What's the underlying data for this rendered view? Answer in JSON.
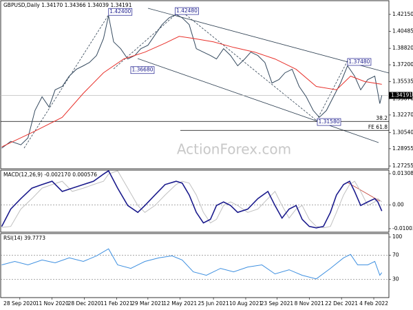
{
  "chart_data": [
    {
      "type": "line",
      "title": "GBPUSD,Daily  1.34170 1.34366 1.34039 1.34191",
      "watermark": "ActionForex.com",
      "xlim": [
        -19,
        366
      ],
      "ylim": [
        1.26985,
        1.43498
      ],
      "yticks": [
        {
          "value": 1.4215,
          "label": "1.42150"
        },
        {
          "value": 1.40485,
          "label": "1.40485"
        },
        {
          "value": 1.3882,
          "label": "1.38820"
        },
        {
          "value": 1.372,
          "label": "1.37200"
        },
        {
          "value": 1.35535,
          "label": "1.35535"
        },
        {
          "value": 1.3387,
          "label": "1.33870"
        },
        {
          "value": 1.3227,
          "label": "1.32270"
        },
        {
          "value": 1.3054,
          "label": "1.30540"
        },
        {
          "value": 1.28955,
          "label": "1.28955"
        },
        {
          "value": 1.27255,
          "label": "1.27255"
        }
      ],
      "series": [
        {
          "color": "#34495e",
          "x": [
            -18,
            -9,
            1,
            8,
            15,
            22,
            29,
            35,
            42,
            49,
            56,
            63,
            69,
            76,
            83,
            88,
            93,
            100,
            107,
            114,
            120,
            127,
            134,
            141,
            148,
            155,
            161,
            168,
            175,
            182,
            189,
            195,
            202,
            209,
            216,
            223,
            229,
            236,
            243,
            250,
            257,
            263,
            270,
            277,
            284,
            291,
            297,
            304,
            311,
            318,
            325,
            332,
            338,
            345,
            352,
            357,
            359
          ],
          "values": [
            1.2901,
            1.2968,
            1.2934,
            1.3002,
            1.3271,
            1.3406,
            1.3305,
            1.3474,
            1.3507,
            1.3609,
            1.3676,
            1.371,
            1.3743,
            1.3811,
            1.3979,
            1.4202,
            1.3945,
            1.3878,
            1.3777,
            1.3811,
            1.3878,
            1.3912,
            1.4013,
            1.4114,
            1.4181,
            1.4215,
            1.4181,
            1.4114,
            1.3878,
            1.3844,
            1.3811,
            1.3777,
            1.3878,
            1.3811,
            1.371,
            1.3777,
            1.3844,
            1.3811,
            1.3743,
            1.3541,
            1.3575,
            1.3642,
            1.3676,
            1.3507,
            1.3406,
            1.3271,
            1.3204,
            1.3271,
            1.3406,
            1.3541,
            1.371,
            1.3609,
            1.3474,
            1.3575,
            1.3609,
            1.3339,
            1.3419
          ]
        },
        {
          "color": "#e8302a",
          "x": [
            -18,
            15,
            42,
            63,
            83,
            103,
            124,
            144,
            158,
            172,
            192,
            212,
            233,
            253,
            274,
            294,
            314,
            328,
            342,
            359
          ],
          "values": [
            1.2914,
            1.3069,
            1.3204,
            1.344,
            1.3642,
            1.3777,
            1.3844,
            1.3932,
            1.3999,
            1.3979,
            1.3945,
            1.3891,
            1.3844,
            1.3777,
            1.3676,
            1.3507,
            1.3474,
            1.3609,
            1.3555,
            1.3528
          ]
        }
      ],
      "annotations": [
        {
          "label": "1.42400",
          "x": 88,
          "y": 1.424
        },
        {
          "label": "1.42480",
          "x": 154,
          "y": 1.4248
        },
        {
          "label": "1.36680",
          "x": 110,
          "y": 1.3668
        },
        {
          "label": "1.37480",
          "x": 325,
          "y": 1.3748
        },
        {
          "label": "1.31580",
          "x": 295,
          "y": 1.3158
        }
      ],
      "levels": [
        {
          "value": 1.3164,
          "label": "38.2"
        },
        {
          "value": 1.3076,
          "label": "FE 61.8"
        }
      ],
      "last_price": {
        "value": 1.34191,
        "label": "1.34191"
      }
    },
    {
      "type": "line",
      "title": "MACD(12,26,9) -0.002170 0.000576",
      "xlim": [
        -19,
        366
      ],
      "ylim": [
        -0.01149,
        0.01455
      ],
      "yticks": [
        0.013083,
        {
          "value": 0,
          "label": "0.00"
        },
        -0.01003
      ],
      "levels": [
        0
      ],
      "series": [
        {
          "color": "#c0c0c0",
          "x": [
            -18,
            -9,
            1,
            12,
            22,
            32,
            42,
            52,
            63,
            73,
            83,
            88,
            97,
            107,
            117,
            124,
            134,
            144,
            155,
            161,
            168,
            175,
            182,
            189,
            195,
            202,
            209,
            216,
            226,
            236,
            246,
            253,
            260,
            267,
            274,
            280,
            287,
            294,
            301,
            308,
            314,
            321,
            327,
            332,
            338,
            345,
            352,
            355,
            359
          ],
          "values": [
            -0.0095,
            -0.0091,
            -0.0018,
            0.0026,
            0.007,
            0.0085,
            0.0099,
            0.0056,
            0.007,
            0.0085,
            0.0099,
            0.0129,
            0.0143,
            0.007,
            -0.0003,
            -0.0032,
            -0.0003,
            0.0041,
            0.0085,
            0.0099,
            0.0091,
            0.0041,
            -0.0032,
            -0.0076,
            -0.0061,
            -0.0003,
            0.0012,
            -0.0003,
            -0.0032,
            -0.0018,
            0.0026,
            0.0056,
            -0.0003,
            -0.0056,
            -0.0018,
            -0.0003,
            -0.0061,
            -0.0091,
            -0.0097,
            -0.0091,
            -0.0032,
            0.0041,
            0.0085,
            0.0099,
            0.0056,
            -0.0003,
            0.0012,
            0.0026,
            0.0012
          ]
        },
        {
          "color": "#1a1a8c",
          "x": [
            -18,
            -9,
            1,
            12,
            22,
            32,
            42,
            52,
            63,
            73,
            83,
            88,
            97,
            107,
            117,
            124,
            134,
            144,
            155,
            161,
            168,
            175,
            182,
            189,
            195,
            202,
            209,
            216,
            226,
            236,
            246,
            253,
            260,
            267,
            274,
            280,
            287,
            294,
            301,
            308,
            314,
            321,
            327,
            332,
            338,
            345,
            352,
            355,
            359
          ],
          "values": [
            -0.0091,
            -0.0018,
            0.0026,
            0.007,
            0.0085,
            0.0099,
            0.0056,
            0.007,
            0.0085,
            0.0099,
            0.0129,
            0.0143,
            0.007,
            -0.0003,
            -0.0032,
            -0.0003,
            0.0041,
            0.0085,
            0.0099,
            0.0091,
            0.0041,
            -0.0032,
            -0.0076,
            -0.0061,
            -0.0003,
            0.0012,
            -0.0003,
            -0.0032,
            -0.0018,
            0.0026,
            0.0056,
            -0.0003,
            -0.0056,
            -0.0018,
            -0.0003,
            -0.0061,
            -0.0091,
            -0.0097,
            -0.0091,
            -0.0032,
            0.0041,
            0.0085,
            0.0099,
            0.0056,
            -0.0003,
            0.0012,
            0.0026,
            0.0012,
            -0.0026
          ]
        }
      ]
    },
    {
      "type": "line",
      "title": "RSI(14) 39.7773",
      "xlim": [
        -19,
        366
      ],
      "ylim": [
        0.2,
        105.7
      ],
      "yticks": [
        100,
        70,
        30
      ],
      "levels": [
        70,
        30
      ],
      "xticks": [
        {
          "value": 0,
          "label": "28 Sep 2020"
        },
        {
          "value": 32,
          "label": "11 Nov 2020"
        },
        {
          "value": 64,
          "label": "28 Dec 2020"
        },
        {
          "value": 96,
          "label": "11 Feb 2021"
        },
        {
          "value": 127,
          "label": "29 Mar 2021"
        },
        {
          "value": 159,
          "label": "12 May 2021"
        },
        {
          "value": 192,
          "label": "25 Jun 2021"
        },
        {
          "value": 224,
          "label": "10 Aug 2021"
        },
        {
          "value": 255,
          "label": "23 Sep 2021"
        },
        {
          "value": 287,
          "label": "8 Nov 2021"
        },
        {
          "value": 319,
          "label": "22 Dec 2021"
        },
        {
          "value": 351,
          "label": "4 Feb 2022"
        }
      ],
      "series": [
        {
          "color": "#3d8fe0",
          "x": [
            -18,
            -5,
            8,
            22,
            35,
            49,
            63,
            76,
            88,
            97,
            110,
            124,
            138,
            151,
            161,
            172,
            185,
            199,
            212,
            226,
            240,
            253,
            267,
            280,
            294,
            308,
            321,
            328,
            335,
            345,
            352,
            357,
            359
          ],
          "values": [
            54.1,
            59.8,
            54.1,
            62.1,
            57.5,
            65.6,
            59.8,
            69.0,
            80.5,
            54.1,
            48.3,
            59.8,
            65.6,
            69.0,
            62.1,
            42.6,
            36.9,
            48.3,
            42.6,
            50.6,
            54.1,
            39.2,
            46.0,
            36.9,
            31.1,
            48.3,
            65.6,
            71.3,
            54.1,
            54.1,
            59.8,
            36.9,
            41.4
          ]
        }
      ]
    }
  ]
}
